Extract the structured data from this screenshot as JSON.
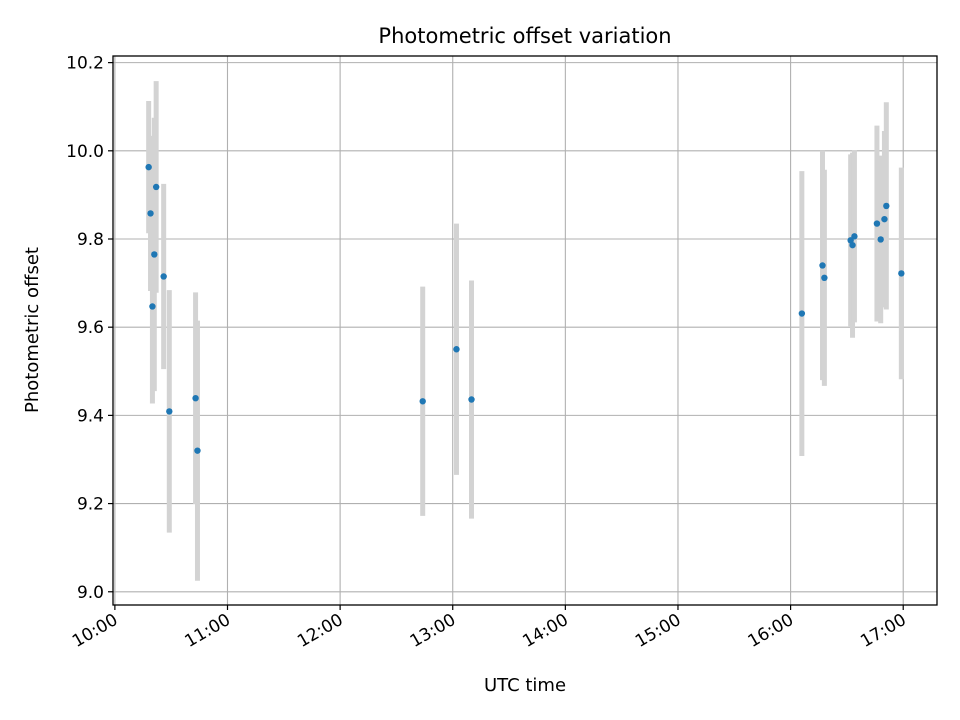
{
  "chart_data": {
    "type": "scatter",
    "title": "Photometric offset variation",
    "xlabel": "UTC time",
    "ylabel": "Photometric offset",
    "xlim": [
      "09:59",
      "17:18"
    ],
    "ylim": [
      8.97,
      10.215
    ],
    "x_ticks": [
      "10:00",
      "11:00",
      "12:00",
      "13:00",
      "14:00",
      "15:00",
      "16:00",
      "17:00"
    ],
    "y_ticks": [
      "9.0",
      "9.2",
      "9.4",
      "9.6",
      "9.8",
      "10.0",
      "10.2"
    ],
    "grid": true,
    "colors": {
      "points": "#1f77b4",
      "errorbars": "#d3d3d3",
      "grid": "#b0b0b0"
    },
    "points": [
      {
        "x": "10:18",
        "y": 9.963,
        "err": 0.15
      },
      {
        "x": "10:19",
        "y": 9.858,
        "err": 0.176
      },
      {
        "x": "10:20",
        "y": 9.647,
        "err": 0.22
      },
      {
        "x": "10:21",
        "y": 9.765,
        "err": 0.31
      },
      {
        "x": "10:22",
        "y": 9.918,
        "err": 0.24
      },
      {
        "x": "10:26",
        "y": 9.715,
        "err": 0.21
      },
      {
        "x": "10:29",
        "y": 9.409,
        "err": 0.275
      },
      {
        "x": "10:43",
        "y": 9.439,
        "err": 0.24
      },
      {
        "x": "10:44",
        "y": 9.32,
        "err": 0.295
      },
      {
        "x": "12:44",
        "y": 9.432,
        "err": 0.26
      },
      {
        "x": "13:02",
        "y": 9.55,
        "err": 0.285
      },
      {
        "x": "13:10",
        "y": 9.436,
        "err": 0.27
      },
      {
        "x": "16:06",
        "y": 9.631,
        "err": 0.323
      },
      {
        "x": "16:17",
        "y": 9.74,
        "err": 0.26
      },
      {
        "x": "16:18",
        "y": 9.712,
        "err": 0.245
      },
      {
        "x": "16:32",
        "y": 9.797,
        "err": 0.195
      },
      {
        "x": "16:33",
        "y": 9.786,
        "err": 0.21
      },
      {
        "x": "16:34",
        "y": 9.806,
        "err": 0.195
      },
      {
        "x": "16:46",
        "y": 9.835,
        "err": 0.222
      },
      {
        "x": "16:48",
        "y": 9.799,
        "err": 0.19
      },
      {
        "x": "16:50",
        "y": 9.845,
        "err": 0.2
      },
      {
        "x": "16:51",
        "y": 9.875,
        "err": 0.235
      },
      {
        "x": "16:59",
        "y": 9.722,
        "err": 0.24
      }
    ]
  }
}
